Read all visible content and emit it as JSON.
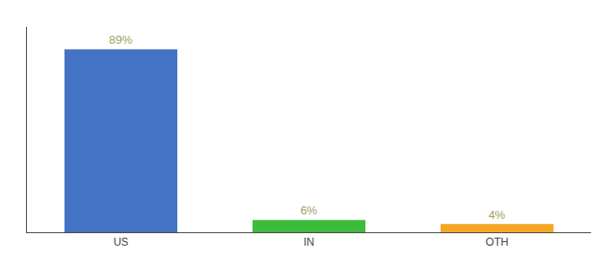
{
  "chart_data": {
    "type": "bar",
    "categories": [
      "US",
      "IN",
      "OTH"
    ],
    "values": [
      89,
      6,
      4
    ],
    "value_labels": [
      "89%",
      "6%",
      "4%"
    ],
    "colors": [
      "#4472c4",
      "#3dbb3d",
      "#f5a623"
    ],
    "ylim": [
      0,
      100
    ],
    "grid": false,
    "data_labels": true,
    "tick_labels": "x"
  }
}
